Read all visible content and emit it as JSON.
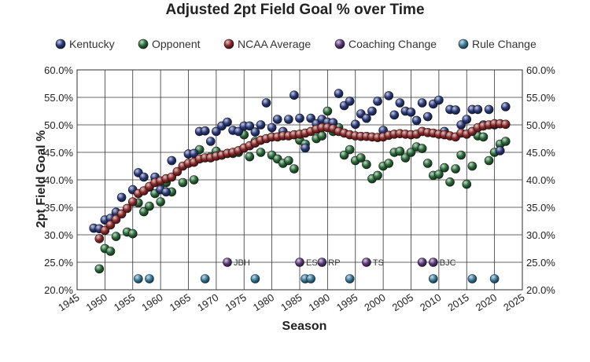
{
  "chart_data": {
    "type": "scatter",
    "title": "Adjusted 2pt Field Goal % over Time",
    "xlabel": "Season",
    "ylabel": "2pt Field Goal %",
    "xlim": [
      1945,
      2025
    ],
    "ylim": [
      20,
      60
    ],
    "x_ticks": [
      1945,
      1950,
      1955,
      1960,
      1965,
      1970,
      1975,
      1980,
      1985,
      1990,
      1995,
      2000,
      2005,
      2010,
      2015,
      2020,
      2025
    ],
    "y_ticks": [
      20,
      25,
      30,
      35,
      40,
      45,
      50,
      55,
      60
    ],
    "y_tick_labels": [
      "20.0%",
      "25.0%",
      "30.0%",
      "35.0%",
      "40.0%",
      "45.0%",
      "50.0%",
      "55.0%",
      "60.0%"
    ],
    "grid": true,
    "legend_position": "top",
    "series": [
      {
        "name": "Kentucky",
        "color": "#2a3a7a",
        "points": [
          [
            1948,
            31.2
          ],
          [
            1949,
            31.1
          ],
          [
            1950,
            32.7
          ],
          [
            1951,
            33.0
          ],
          [
            1952,
            34.1
          ],
          [
            1953,
            36.8
          ],
          [
            1955,
            38.2
          ],
          [
            1956,
            41.3
          ],
          [
            1957,
            40.5
          ],
          [
            1958,
            38.7
          ],
          [
            1959,
            40.5
          ],
          [
            1960,
            38.2
          ],
          [
            1961,
            37.8
          ],
          [
            1962,
            43.5
          ],
          [
            1965,
            44.7
          ],
          [
            1966,
            44.8
          ],
          [
            1967,
            48.8
          ],
          [
            1968,
            48.9
          ],
          [
            1969,
            47.0
          ],
          [
            1970,
            48.8
          ],
          [
            1971,
            49.8
          ],
          [
            1972,
            50.5
          ],
          [
            1973,
            49.0
          ],
          [
            1974,
            48.8
          ],
          [
            1975,
            49.8
          ],
          [
            1976,
            49.8
          ],
          [
            1977,
            48.7
          ],
          [
            1978,
            50.0
          ],
          [
            1979,
            54.0
          ],
          [
            1980,
            49.5
          ],
          [
            1981,
            51.0
          ],
          [
            1982,
            48.8
          ],
          [
            1983,
            51.0
          ],
          [
            1984,
            55.4
          ],
          [
            1985,
            51.2
          ],
          [
            1986,
            45.8
          ],
          [
            1987,
            51.2
          ],
          [
            1988,
            50.2
          ],
          [
            1989,
            51.0
          ],
          [
            1990,
            50.5
          ],
          [
            1991,
            50.4
          ],
          [
            1992,
            55.7
          ],
          [
            1993,
            53.5
          ],
          [
            1994,
            54.3
          ],
          [
            1995,
            50.1
          ],
          [
            1996,
            52.0
          ],
          [
            1997,
            51.2
          ],
          [
            1998,
            52.5
          ],
          [
            1999,
            54.3
          ],
          [
            2000,
            49.0
          ],
          [
            2001,
            55.3
          ],
          [
            2002,
            51.8
          ],
          [
            2003,
            54.0
          ],
          [
            2004,
            52.5
          ],
          [
            2005,
            52.3
          ],
          [
            2006,
            50.8
          ],
          [
            2007,
            54.0
          ],
          [
            2008,
            51.5
          ],
          [
            2009,
            53.8
          ],
          [
            2010,
            54.5
          ],
          [
            2011,
            48.8
          ],
          [
            2012,
            52.8
          ],
          [
            2013,
            52.7
          ],
          [
            2014,
            50.0
          ],
          [
            2015,
            51.0
          ],
          [
            2016,
            52.8
          ],
          [
            2017,
            52.8
          ],
          [
            2018,
            50.0
          ],
          [
            2019,
            52.8
          ],
          [
            2020,
            50.0
          ],
          [
            2021,
            45.3
          ],
          [
            2022,
            53.3
          ]
        ]
      },
      {
        "name": "Opponent",
        "color": "#2a6a3a",
        "points": [
          [
            1949,
            23.8
          ],
          [
            1950,
            27.5
          ],
          [
            1951,
            27.0
          ],
          [
            1952,
            29.7
          ],
          [
            1954,
            30.5
          ],
          [
            1955,
            30.2
          ],
          [
            1956,
            35.8
          ],
          [
            1957,
            34.2
          ],
          [
            1958,
            35.2
          ],
          [
            1959,
            37.5
          ],
          [
            1960,
            36.0
          ],
          [
            1961,
            39.5
          ],
          [
            1962,
            37.8
          ],
          [
            1964,
            39.5
          ],
          [
            1966,
            40.0
          ],
          [
            1967,
            45.5
          ],
          [
            1969,
            44.2
          ],
          [
            1970,
            45.2
          ],
          [
            1971,
            44.5
          ],
          [
            1972,
            44.8
          ],
          [
            1973,
            44.8
          ],
          [
            1974,
            45.0
          ],
          [
            1975,
            48.2
          ],
          [
            1976,
            44.2
          ],
          [
            1977,
            47.0
          ],
          [
            1978,
            45.0
          ],
          [
            1980,
            44.5
          ],
          [
            1981,
            43.8
          ],
          [
            1982,
            43.0
          ],
          [
            1983,
            43.5
          ],
          [
            1984,
            42.0
          ],
          [
            1985,
            47.2
          ],
          [
            1986,
            46.5
          ],
          [
            1988,
            47.5
          ],
          [
            1989,
            48.0
          ],
          [
            1990,
            52.5
          ],
          [
            1991,
            48.8
          ],
          [
            1992,
            49.5
          ],
          [
            1993,
            44.5
          ],
          [
            1994,
            45.5
          ],
          [
            1995,
            43.5
          ],
          [
            1996,
            44.0
          ],
          [
            1997,
            42.8
          ],
          [
            1998,
            40.2
          ],
          [
            1999,
            40.8
          ],
          [
            2000,
            42.5
          ],
          [
            2001,
            43.0
          ],
          [
            2002,
            45.0
          ],
          [
            2003,
            45.2
          ],
          [
            2004,
            44.0
          ],
          [
            2005,
            45.0
          ],
          [
            2006,
            46.0
          ],
          [
            2007,
            45.7
          ],
          [
            2008,
            43.0
          ],
          [
            2009,
            40.8
          ],
          [
            2010,
            41.0
          ],
          [
            2011,
            42.2
          ],
          [
            2012,
            39.6
          ],
          [
            2013,
            42.0
          ],
          [
            2014,
            44.5
          ],
          [
            2015,
            39.2
          ],
          [
            2016,
            42.5
          ],
          [
            2017,
            48.0
          ],
          [
            2018,
            47.8
          ],
          [
            2019,
            43.5
          ],
          [
            2020,
            45.0
          ],
          [
            2021,
            46.5
          ],
          [
            2022,
            47.0
          ]
        ]
      },
      {
        "name": "NCAA Average",
        "color": "#8a2a2a",
        "points": [
          [
            1949,
            29.3
          ],
          [
            1950,
            30.8
          ],
          [
            1951,
            31.8
          ],
          [
            1952,
            32.8
          ],
          [
            1953,
            33.8
          ],
          [
            1954,
            34.8
          ],
          [
            1955,
            36.0
          ],
          [
            1956,
            37.5
          ],
          [
            1957,
            38.0
          ],
          [
            1958,
            38.8
          ],
          [
            1959,
            39.5
          ],
          [
            1960,
            39.8
          ],
          [
            1961,
            40.2
          ],
          [
            1962,
            40.5
          ],
          [
            1963,
            41.5
          ],
          [
            1964,
            42.5
          ],
          [
            1965,
            43.0
          ],
          [
            1966,
            43.2
          ],
          [
            1967,
            43.8
          ],
          [
            1968,
            44.0
          ],
          [
            1969,
            44.0
          ],
          [
            1970,
            44.3
          ],
          [
            1971,
            44.5
          ],
          [
            1972,
            44.8
          ],
          [
            1973,
            45.0
          ],
          [
            1974,
            45.3
          ],
          [
            1975,
            45.8
          ],
          [
            1976,
            46.2
          ],
          [
            1977,
            46.7
          ],
          [
            1978,
            47.2
          ],
          [
            1979,
            47.5
          ],
          [
            1980,
            47.8
          ],
          [
            1981,
            47.8
          ],
          [
            1982,
            48.0
          ],
          [
            1983,
            48.0
          ],
          [
            1984,
            48.2
          ],
          [
            1985,
            48.3
          ],
          [
            1986,
            48.5
          ],
          [
            1987,
            48.8
          ],
          [
            1988,
            49.2
          ],
          [
            1989,
            49.5
          ],
          [
            1990,
            49.5
          ],
          [
            1991,
            49.3
          ],
          [
            1992,
            48.8
          ],
          [
            1993,
            48.5
          ],
          [
            1994,
            48.2
          ],
          [
            1995,
            48.0
          ],
          [
            1996,
            47.9
          ],
          [
            1997,
            47.9
          ],
          [
            1998,
            47.8
          ],
          [
            1999,
            47.7
          ],
          [
            2000,
            47.8
          ],
          [
            2001,
            48.1
          ],
          [
            2002,
            48.3
          ],
          [
            2003,
            48.4
          ],
          [
            2004,
            48.3
          ],
          [
            2005,
            48.2
          ],
          [
            2006,
            48.3
          ],
          [
            2007,
            48.8
          ],
          [
            2008,
            48.6
          ],
          [
            2009,
            48.5
          ],
          [
            2010,
            48.3
          ],
          [
            2011,
            48.2
          ],
          [
            2012,
            48.0
          ],
          [
            2013,
            47.8
          ],
          [
            2014,
            48.5
          ],
          [
            2015,
            48.3
          ],
          [
            2016,
            48.8
          ],
          [
            2017,
            49.5
          ],
          [
            2018,
            49.8
          ],
          [
            2019,
            50.0
          ],
          [
            2020,
            50.2
          ],
          [
            2021,
            50.2
          ],
          [
            2022,
            50.1
          ]
        ]
      },
      {
        "name": "Coaching Change",
        "color": "#5a3a7a",
        "points": [
          [
            1972,
            25.0
          ],
          [
            1985,
            25.0
          ],
          [
            1989,
            25.0
          ],
          [
            1997,
            25.0
          ],
          [
            2007,
            25.0
          ],
          [
            2009,
            25.0
          ]
        ],
        "labels": [
          "JBH",
          "ES",
          "RP",
          "TS",
          "",
          "BJC"
        ]
      },
      {
        "name": "Rule Change",
        "color": "#3a7a9a",
        "points": [
          [
            1956,
            22.0
          ],
          [
            1958,
            22.0
          ],
          [
            1968,
            22.0
          ],
          [
            1977,
            22.0
          ],
          [
            1986,
            22.0
          ],
          [
            1987,
            22.0
          ],
          [
            1994,
            22.0
          ],
          [
            2009,
            22.0
          ],
          [
            2016,
            22.0
          ],
          [
            2020,
            22.0
          ]
        ]
      }
    ]
  }
}
